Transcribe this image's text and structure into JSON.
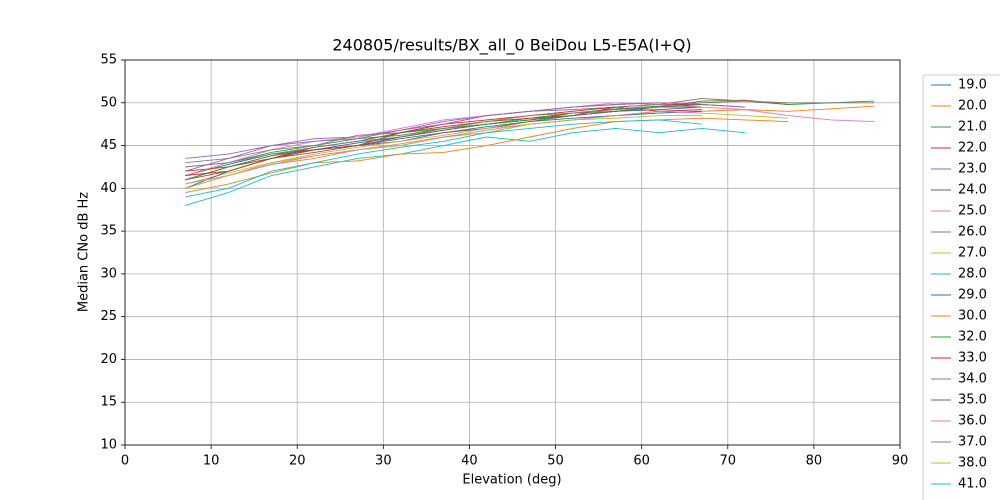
{
  "chart_data": {
    "type": "line",
    "title": "240805/results/BX_all_0 BeiDou L5-E5A(I+Q)",
    "xlabel": "Elevation (deg)",
    "ylabel": "Median CNo dB Hz",
    "x": [
      7,
      12,
      17,
      22,
      27,
      32,
      37,
      42,
      47,
      52,
      57,
      62,
      67,
      72,
      77,
      82,
      87
    ],
    "xlim": [
      0,
      90
    ],
    "xticks": [
      0,
      10,
      20,
      30,
      40,
      50,
      60,
      70,
      80,
      90
    ],
    "ylim": [
      10,
      55
    ],
    "yticks": [
      10,
      15,
      20,
      25,
      30,
      35,
      40,
      45,
      50,
      55
    ],
    "grid": true,
    "legend": "outside right",
    "series": [
      {
        "name": "19.0",
        "color": "#1f77b4",
        "values": [
          41.5,
          42.8,
          44.0,
          44.5,
          45.3,
          46.0,
          46.8,
          47.5,
          48.0,
          48.5,
          49.0,
          49.2,
          49.5,
          null,
          null,
          null,
          null
        ]
      },
      {
        "name": "20.0",
        "color": "#ff7f0e",
        "values": [
          40.0,
          41.5,
          42.8,
          43.5,
          44.5,
          45.0,
          46.0,
          46.5,
          47.5,
          48.0,
          48.5,
          48.8,
          49.0,
          49.2,
          49.0,
          49.3,
          49.6
        ]
      },
      {
        "name": "21.0",
        "color": "#2ca02c",
        "values": [
          42.5,
          43.0,
          44.2,
          45.0,
          45.8,
          46.2,
          47.0,
          47.5,
          48.2,
          48.8,
          49.3,
          49.6,
          50.0,
          50.2,
          49.8,
          50.0,
          50.2
        ]
      },
      {
        "name": "22.0",
        "color": "#d62728",
        "values": [
          42.0,
          42.5,
          43.5,
          44.8,
          45.5,
          46.5,
          47.2,
          47.8,
          48.2,
          48.5,
          49.5,
          49.8,
          49.8,
          49.5,
          null,
          null,
          null
        ]
      },
      {
        "name": "23.0",
        "color": "#9467bd",
        "values": [
          43.5,
          44.0,
          45.0,
          45.8,
          46.0,
          46.8,
          47.8,
          48.5,
          49.0,
          49.5,
          49.8,
          50.0,
          49.8,
          49.5,
          null,
          null,
          null
        ]
      },
      {
        "name": "24.0",
        "color": "#8c564b",
        "values": [
          41.0,
          42.5,
          43.8,
          44.5,
          45.0,
          46.0,
          46.8,
          47.5,
          48.0,
          48.8,
          49.0,
          49.5,
          50.2,
          50.3,
          49.8,
          null,
          null
        ]
      },
      {
        "name": "25.0",
        "color": "#e377c2",
        "values": [
          41.5,
          43.0,
          44.5,
          45.5,
          46.0,
          47.0,
          48.0,
          48.5,
          49.0,
          49.5,
          50.0,
          49.8,
          49.5,
          49.2,
          48.5,
          48.0,
          47.8
        ]
      },
      {
        "name": "26.0",
        "color": "#7f7f7f",
        "values": [
          43.0,
          43.5,
          44.5,
          45.0,
          46.2,
          46.5,
          47.5,
          48.5,
          49.0,
          49.2,
          49.5,
          49.8,
          50.5,
          50.2,
          50.0,
          50.0,
          50.0
        ]
      },
      {
        "name": "27.0",
        "color": "#bcbd22",
        "values": [
          40.5,
          41.8,
          43.0,
          43.8,
          44.5,
          45.0,
          46.0,
          46.5,
          47.5,
          48.0,
          48.5,
          49.0,
          48.8,
          48.5,
          48.2,
          null,
          null
        ]
      },
      {
        "name": "28.0",
        "color": "#17becf",
        "values": [
          38.0,
          39.5,
          41.5,
          42.5,
          43.5,
          44.0,
          45.0,
          46.0,
          45.5,
          46.5,
          47.0,
          46.5,
          47.0,
          46.5,
          null,
          null,
          null
        ]
      },
      {
        "name": "29.0",
        "color": "#1f77b4",
        "values": [
          40.0,
          42.0,
          43.5,
          44.5,
          45.0,
          45.8,
          46.5,
          47.2,
          47.8,
          48.2,
          48.5,
          48.8,
          49.0,
          null,
          null,
          null,
          null
        ]
      },
      {
        "name": "30.0",
        "color": "#ff7f0e",
        "values": [
          39.5,
          40.5,
          41.8,
          43.0,
          43.2,
          44.0,
          44.2,
          45.0,
          46.0,
          47.0,
          47.8,
          48.0,
          48.2,
          48.0,
          47.8,
          null,
          null
        ]
      },
      {
        "name": "32.0",
        "color": "#2ca02c",
        "values": [
          41.0,
          42.5,
          43.8,
          44.8,
          45.5,
          46.5,
          47.0,
          47.5,
          48.0,
          48.5,
          49.0,
          49.5,
          49.5,
          null,
          null,
          null,
          null
        ]
      },
      {
        "name": "33.0",
        "color": "#d62728",
        "values": [
          41.5,
          42.0,
          43.5,
          44.5,
          45.0,
          46.5,
          47.5,
          48.0,
          48.5,
          49.0,
          49.5,
          49.0,
          49.2,
          null,
          null,
          null,
          null
        ]
      },
      {
        "name": "34.0",
        "color": "#9467bd",
        "values": [
          42.0,
          43.5,
          45.0,
          45.5,
          45.8,
          46.8,
          47.5,
          48.5,
          49.0,
          49.5,
          49.8,
          50.0,
          null,
          null,
          null,
          null,
          null
        ]
      },
      {
        "name": "35.0",
        "color": "#8c564b",
        "values": [
          41.0,
          42.0,
          43.5,
          44.2,
          45.0,
          45.5,
          46.5,
          47.0,
          47.8,
          48.5,
          49.0,
          49.5,
          49.8,
          null,
          null,
          null,
          null
        ]
      },
      {
        "name": "36.0",
        "color": "#e377c2",
        "values": [
          40.5,
          41.5,
          42.8,
          43.8,
          44.5,
          45.2,
          46.0,
          46.8,
          47.5,
          48.0,
          48.5,
          49.0,
          48.8,
          null,
          null,
          null,
          null
        ]
      },
      {
        "name": "37.0",
        "color": "#7f7f7f",
        "values": [
          42.5,
          43.0,
          44.0,
          44.8,
          45.5,
          46.0,
          47.0,
          47.8,
          48.5,
          48.8,
          49.2,
          49.5,
          null,
          null,
          null,
          null,
          null
        ]
      },
      {
        "name": "38.0",
        "color": "#bcbd22",
        "values": [
          40.0,
          41.5,
          43.0,
          44.0,
          44.8,
          45.5,
          46.2,
          47.0,
          47.5,
          48.0,
          48.2,
          48.5,
          48.5,
          null,
          null,
          null,
          null
        ]
      },
      {
        "name": "41.0",
        "color": "#17becf",
        "values": [
          39.0,
          40.0,
          42.0,
          43.0,
          44.0,
          44.8,
          45.5,
          46.5,
          47.0,
          47.5,
          47.8,
          48.0,
          47.5,
          null,
          null,
          null,
          null
        ]
      }
    ]
  }
}
